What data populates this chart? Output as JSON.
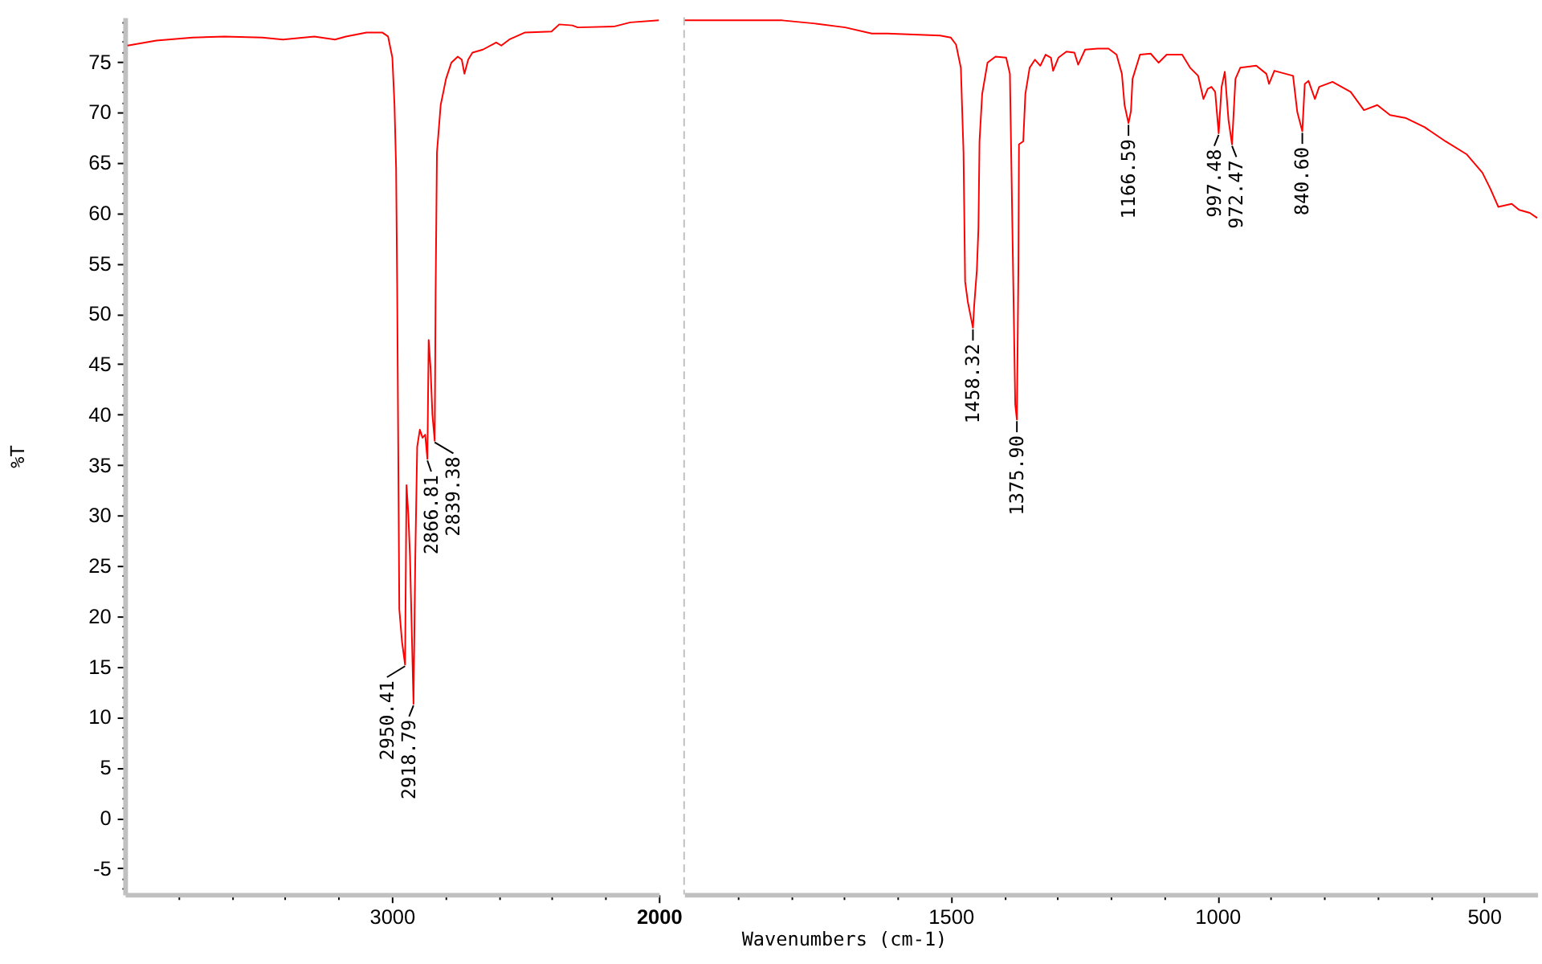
{
  "chart_data": [
    {
      "type": "line",
      "ylabel": "%T",
      "line_style": "solid",
      "x": [
        3990,
        3882,
        3746,
        3627,
        3485,
        3408,
        3290,
        3213,
        3172,
        3095,
        3036,
        3014,
        2998,
        2990,
        2984,
        2980,
        2972,
        2962,
        2950.41,
        2945,
        2938,
        2932,
        2918.79,
        2912,
        2905,
        2895,
        2885,
        2875,
        2866.81,
        2862,
        2855,
        2848,
        2839.38,
        2836,
        2831,
        2817,
        2797,
        2777,
        2753,
        2738,
        2728,
        2714,
        2698,
        2659,
        2609,
        2590,
        2560,
        2501,
        2402,
        2373,
        2324,
        2304,
        2166,
        2107,
        2000
      ],
      "series": [
        {
          "color": "#ff0000",
          "values": [
            76.6,
            77.1,
            77.4,
            77.5,
            77.4,
            77.2,
            77.5,
            77.2,
            77.5,
            77.9,
            77.9,
            77.5,
            75.4,
            70.7,
            64.5,
            52.7,
            20.7,
            17.5,
            15.2,
            33.0,
            30.0,
            26.0,
            11.3,
            26.0,
            36.8,
            38.5,
            37.7,
            38.0,
            35.6,
            47.4,
            44.6,
            40.0,
            37.4,
            52.0,
            66.0,
            70.7,
            73.3,
            74.9,
            75.5,
            75.2,
            73.8,
            75.2,
            75.9,
            76.2,
            76.9,
            76.6,
            77.2,
            77.9,
            78.0,
            78.7,
            78.6,
            78.4,
            78.5,
            78.9,
            79.1
          ]
        }
      ],
      "xlim": [
        4000,
        2000
      ],
      "xticks": [
        {
          "value": 3800,
          "label": null
        },
        {
          "value": 3600,
          "label": null
        },
        {
          "value": 3400,
          "label": null
        },
        {
          "value": 3200,
          "label": null
        },
        3000,
        {
          "value": 2800,
          "label": null
        },
        {
          "value": 2600,
          "label": null
        },
        {
          "value": 2400,
          "label": null
        },
        {
          "value": 2200,
          "label": null
        },
        2000
      ],
      "ylim": [
        -7.6,
        79.4
      ],
      "yticks": [
        {
          "value": -7,
          "label": null
        },
        {
          "value": -6,
          "label": null
        },
        -5,
        {
          "value": -4,
          "label": null
        },
        {
          "value": -3,
          "label": null
        },
        {
          "value": -2,
          "label": null
        },
        {
          "value": -1,
          "label": null
        },
        0,
        {
          "value": 1,
          "label": null
        },
        {
          "value": 2,
          "label": null
        },
        {
          "value": 3,
          "label": null
        },
        {
          "value": 4,
          "label": null
        },
        5,
        {
          "value": 6,
          "label": null
        },
        {
          "value": 7,
          "label": null
        },
        {
          "value": 8,
          "label": null
        },
        {
          "value": 9,
          "label": null
        },
        10,
        {
          "value": 11,
          "label": null
        },
        {
          "value": 12,
          "label": null
        },
        {
          "value": 13,
          "label": null
        },
        {
          "value": 14,
          "label": null
        },
        15,
        {
          "value": 16,
          "label": null
        },
        {
          "value": 17,
          "label": null
        },
        {
          "value": 18,
          "label": null
        },
        {
          "value": 19,
          "label": null
        },
        20,
        {
          "value": 21,
          "label": null
        },
        {
          "value": 22,
          "label": null
        },
        {
          "value": 23,
          "label": null
        },
        {
          "value": 24,
          "label": null
        },
        25,
        {
          "value": 26,
          "label": null
        },
        {
          "value": 27,
          "label": null
        },
        {
          "value": 28,
          "label": null
        },
        {
          "value": 29,
          "label": null
        },
        30,
        {
          "value": 31,
          "label": null
        },
        {
          "value": 32,
          "label": null
        },
        {
          "value": 33,
          "label": null
        },
        {
          "value": 34,
          "label": null
        },
        35,
        {
          "value": 36,
          "label": null
        },
        {
          "value": 37,
          "label": null
        },
        {
          "value": 38,
          "label": null
        },
        {
          "value": 39,
          "label": null
        },
        40,
        {
          "value": 41,
          "label": null
        },
        {
          "value": 42,
          "label": null
        },
        {
          "value": 43,
          "label": null
        },
        {
          "value": 44,
          "label": null
        },
        45,
        {
          "value": 46,
          "label": null
        },
        {
          "value": 47,
          "label": null
        },
        {
          "value": 48,
          "label": null
        },
        {
          "value": 49,
          "label": null
        },
        50,
        {
          "value": 51,
          "label": null
        },
        {
          "value": 52,
          "label": null
        },
        {
          "value": 53,
          "label": null
        },
        {
          "value": 54,
          "label": null
        },
        55,
        {
          "value": 56,
          "label": null
        },
        {
          "value": 57,
          "label": null
        },
        {
          "value": 58,
          "label": null
        },
        {
          "value": 59,
          "label": null
        },
        60,
        {
          "value": 61,
          "label": null
        },
        {
          "value": 62,
          "label": null
        },
        {
          "value": 63,
          "label": null
        },
        {
          "value": 64,
          "label": null
        },
        65,
        {
          "value": 66,
          "label": null
        },
        {
          "value": 67,
          "label": null
        },
        {
          "value": 68,
          "label": null
        },
        {
          "value": 69,
          "label": null
        },
        70,
        {
          "value": 71,
          "label": null
        },
        {
          "value": 72,
          "label": null
        },
        {
          "value": 73,
          "label": null
        },
        {
          "value": 74,
          "label": null
        },
        75,
        {
          "value": 76,
          "label": null
        },
        {
          "value": 77,
          "label": null
        },
        {
          "value": 78,
          "label": null
        },
        {
          "value": 79,
          "label": null
        }
      ],
      "annotations": [
        {
          "text": "2950.41",
          "x": 2950.41,
          "y": 15.2
        },
        {
          "text": "2918.79",
          "x": 2918.79,
          "y": 11.3
        },
        {
          "text": "2866.81",
          "x": 2866.81,
          "y": 35.6
        },
        {
          "text": "2839.38",
          "x": 2839.38,
          "y": 37.4
        }
      ]
    },
    {
      "type": "line",
      "xlabel": "Wavenumbers (cm-1)",
      "line_style": "solid",
      "tick_labels": "x",
      "x": [
        2000,
        1900,
        1816,
        1757,
        1698,
        1648,
        1619,
        1569,
        1520,
        1500,
        1490,
        1481,
        1476,
        1473,
        1468,
        1458.32,
        1456,
        1451,
        1448,
        1446,
        1441,
        1431,
        1416,
        1396,
        1389,
        1386,
        1379,
        1375.9,
        1373,
        1372,
        1364,
        1360,
        1352,
        1342,
        1332,
        1322,
        1312,
        1308,
        1298,
        1283,
        1268,
        1261,
        1248,
        1224,
        1204,
        1189,
        1179,
        1174,
        1166.59,
        1162,
        1159,
        1145,
        1125,
        1110,
        1095,
        1066,
        1051,
        1036,
        1026,
        1018,
        1011,
        1004,
        997.48,
        992,
        986,
        979,
        972.47,
        966,
        957,
        927,
        908,
        903,
        893,
        858,
        850,
        840.6,
        836,
        829,
        817,
        809,
        784,
        750,
        725,
        700,
        676,
        646,
        611,
        572,
        532,
        503,
        488,
        473,
        448,
        434,
        414,
        400
      ],
      "series": [
        {
          "color": "#ff0000",
          "values": [
            79.1,
            79.1,
            79.1,
            78.8,
            78.4,
            77.8,
            77.8,
            77.7,
            77.6,
            77.4,
            76.7,
            74.4,
            66.0,
            53.2,
            51.2,
            48.6,
            50.8,
            54.3,
            58.5,
            67.1,
            71.8,
            74.9,
            75.5,
            75.4,
            73.8,
            64.0,
            41.0,
            39.5,
            55.0,
            66.8,
            67.1,
            71.8,
            74.4,
            75.2,
            74.6,
            75.7,
            75.4,
            74.1,
            75.4,
            76.0,
            75.9,
            74.7,
            76.2,
            76.3,
            76.3,
            75.7,
            73.8,
            70.7,
            68.9,
            70.1,
            73.3,
            75.7,
            75.8,
            74.9,
            75.7,
            75.7,
            74.4,
            73.6,
            71.3,
            72.3,
            72.5,
            72.0,
            67.9,
            72.5,
            74.0,
            69.2,
            66.8,
            73.3,
            74.4,
            74.6,
            73.8,
            72.8,
            74.1,
            73.6,
            70.0,
            68.1,
            72.8,
            73.1,
            71.3,
            72.5,
            73.0,
            72.0,
            70.2,
            70.7,
            69.7,
            69.4,
            68.5,
            67.1,
            65.8,
            64.0,
            62.4,
            60.6,
            60.9,
            60.3,
            60.0,
            59.5
          ]
        }
      ],
      "xlim": [
        2000,
        400
      ],
      "xticks": [
        {
          "value": 1900,
          "label": null
        },
        {
          "value": 1800,
          "label": null
        },
        {
          "value": 1700,
          "label": null
        },
        {
          "value": 1600,
          "label": null
        },
        1500,
        {
          "value": 1400,
          "label": null
        },
        {
          "value": 1300,
          "label": null
        },
        {
          "value": 1200,
          "label": null
        },
        {
          "value": 1100,
          "label": null
        },
        1000,
        {
          "value": 900,
          "label": null
        },
        {
          "value": 800,
          "label": null
        },
        {
          "value": 700,
          "label": null
        },
        {
          "value": 600,
          "label": null
        },
        500
      ],
      "ylim": [
        -7.6,
        79.4
      ],
      "ref_lines": [
        {
          "axis": "x",
          "value": 2000,
          "color": "#c0c0c0",
          "line_style": "dashed"
        }
      ],
      "annotations": [
        {
          "text": "1458.32",
          "x": 1458.32,
          "y": 48.6
        },
        {
          "text": "1375.90",
          "x": 1375.9,
          "y": 39.5
        },
        {
          "text": "1166.59",
          "x": 1166.59,
          "y": 68.9
        },
        {
          "text": "997.48",
          "x": 997.48,
          "y": 67.9
        },
        {
          "text": "972.47",
          "x": 972.47,
          "y": 66.8
        },
        {
          "text": "840.60",
          "x": 840.6,
          "y": 68.1
        }
      ]
    }
  ]
}
